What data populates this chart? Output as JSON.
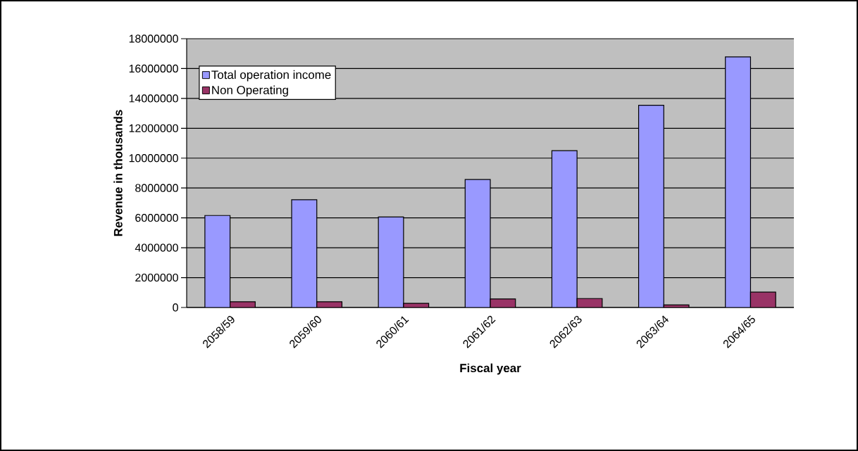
{
  "chart_data": {
    "type": "bar",
    "xlabel": "Fiscal year",
    "ylabel": "Revenue in thousands",
    "categories": [
      "2058/59",
      "2059/60",
      "2060/61",
      "2061/62",
      "2062/63",
      "2063/64",
      "2064/65"
    ],
    "series": [
      {
        "name": "Total operation income",
        "color": "#9999ff",
        "values": [
          6160000,
          7210000,
          6060000,
          8570000,
          10500000,
          13540000,
          16780000
        ]
      },
      {
        "name": "Non Operating",
        "color": "#993366",
        "values": [
          380000,
          380000,
          280000,
          570000,
          600000,
          170000,
          1030000
        ]
      }
    ],
    "ylim": [
      0,
      18000000
    ],
    "yticks": [
      0,
      2000000,
      4000000,
      6000000,
      8000000,
      10000000,
      12000000,
      14000000,
      16000000,
      18000000
    ],
    "grid": "y",
    "legend": "top left"
  }
}
